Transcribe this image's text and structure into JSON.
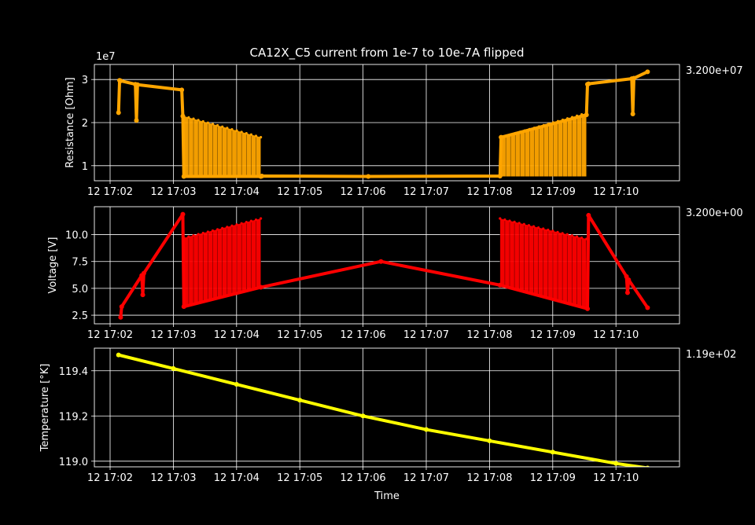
{
  "figure": {
    "title": "CA12X_C5 current from 1e-7 to 10e-7A flipped",
    "background": "#000000",
    "foreground": "#ffffff",
    "grid_color": "#ffffff"
  },
  "chart_data": [
    {
      "type": "line",
      "ylabel": "Resistance [Ohm]",
      "offset_text": "1e7",
      "annotation": "3.200e+07",
      "color": "#ffa500",
      "grid": true,
      "xlim": [
        "12 17:02",
        "12 17:10"
      ],
      "ylim": [
        6500000,
        33500000
      ],
      "yticks": [
        10000000,
        20000000,
        30000000
      ],
      "ytick_labels": [
        "1",
        "2",
        "3"
      ],
      "xticks": [
        "12 17:02",
        "12 17:03",
        "12 17:04",
        "12 17:05",
        "12 17:06",
        "12 17:07",
        "12 17:08",
        "12 17:09",
        "12 17:10"
      ],
      "series": [
        {
          "x": [
            "17:02:08",
            "17:02:09",
            "17:02:10",
            "17:02:24",
            "17:02:25",
            "17:02:26",
            "17:03:08",
            "17:03:09",
            "17:03:10",
            "17:04:23",
            "17:04:24",
            "17:06:05",
            "17:08:10",
            "17:08:11",
            "17:09:32",
            "17:09:33",
            "17:09:34",
            "17:10:15",
            "17:10:16",
            "17:10:17",
            "17:10:30"
          ],
          "y": [
            22300000,
            29800000,
            29700000,
            28900000,
            20500000,
            28800000,
            27600000,
            21500000,
            7500000,
            7500000,
            7600000,
            7500000,
            7600000,
            16600000,
            21800000,
            28900000,
            29000000,
            30200000,
            22000000,
            30300000,
            31800000
          ]
        }
      ],
      "oscillation": [
        {
          "start": "17:03:10",
          "end": "17:04:23",
          "low": 7500000,
          "high_start": 21500000,
          "high_end": 16600000
        },
        {
          "start": "17:08:11",
          "end": "17:09:32",
          "low": 7500000,
          "high_start": 16600000,
          "high_end": 22200000
        }
      ]
    },
    {
      "type": "line",
      "ylabel": "Voltage [V]",
      "annotation": "3.200e+00",
      "color": "#ff0000",
      "grid": true,
      "xlim": [
        "12 17:02",
        "12 17:10"
      ],
      "ylim": [
        1.7,
        12.6
      ],
      "yticks": [
        2.5,
        5.0,
        7.5,
        10.0
      ],
      "ytick_labels": [
        "2.5",
        "5.0",
        "7.5",
        "10.0"
      ],
      "xticks": [
        "12 17:02",
        "12 17:03",
        "12 17:04",
        "12 17:05",
        "12 17:06",
        "12 17:07",
        "12 17:08",
        "12 17:09",
        "12 17:10"
      ],
      "series": [
        {
          "x": [
            "17:02:10",
            "17:02:11",
            "17:02:30",
            "17:02:31",
            "17:02:32",
            "17:03:09",
            "17:03:10",
            "17:04:23",
            "17:06:17",
            "17:08:10",
            "17:09:33",
            "17:09:34",
            "17:10:10",
            "17:10:11",
            "17:10:12",
            "17:10:30"
          ],
          "y": [
            2.3,
            3.3,
            6.2,
            4.4,
            6.4,
            11.9,
            3.3,
            5.1,
            7.5,
            5.3,
            3.1,
            11.8,
            6.1,
            4.6,
            5.8,
            3.2
          ]
        }
      ],
      "oscillation": [
        {
          "start": "17:03:10",
          "end": "17:04:23",
          "low_start": 3.3,
          "low_end": 5.1,
          "high_start": 9.7,
          "high_end": 11.5
        },
        {
          "start": "17:08:10",
          "end": "17:09:32",
          "low_start": 5.3,
          "low_end": 3.1,
          "high_start": 11.5,
          "high_end": 9.6
        }
      ]
    },
    {
      "type": "line",
      "ylabel": "Temperature [°K]",
      "xlabel": "Time",
      "annotation": "1.19e+02",
      "color": "#ffff00",
      "grid": true,
      "xlim": [
        "12 17:02",
        "12 17:10"
      ],
      "ylim": [
        118.975,
        119.5
      ],
      "yticks": [
        119.0,
        119.2,
        119.4
      ],
      "ytick_labels": [
        "119.0",
        "119.2",
        "119.4"
      ],
      "xticks": [
        "12 17:02",
        "12 17:03",
        "12 17:04",
        "12 17:05",
        "12 17:06",
        "12 17:07",
        "12 17:08",
        "12 17:09",
        "12 17:10"
      ],
      "series": [
        {
          "x": [
            "17:02:08",
            "17:03:00",
            "17:04:00",
            "17:05:00",
            "17:06:00",
            "17:07:00",
            "17:08:00",
            "17:09:00",
            "17:10:00",
            "17:10:30"
          ],
          "y": [
            119.47,
            119.41,
            119.34,
            119.27,
            119.2,
            119.14,
            119.09,
            119.04,
            118.99,
            118.97
          ]
        }
      ]
    }
  ]
}
